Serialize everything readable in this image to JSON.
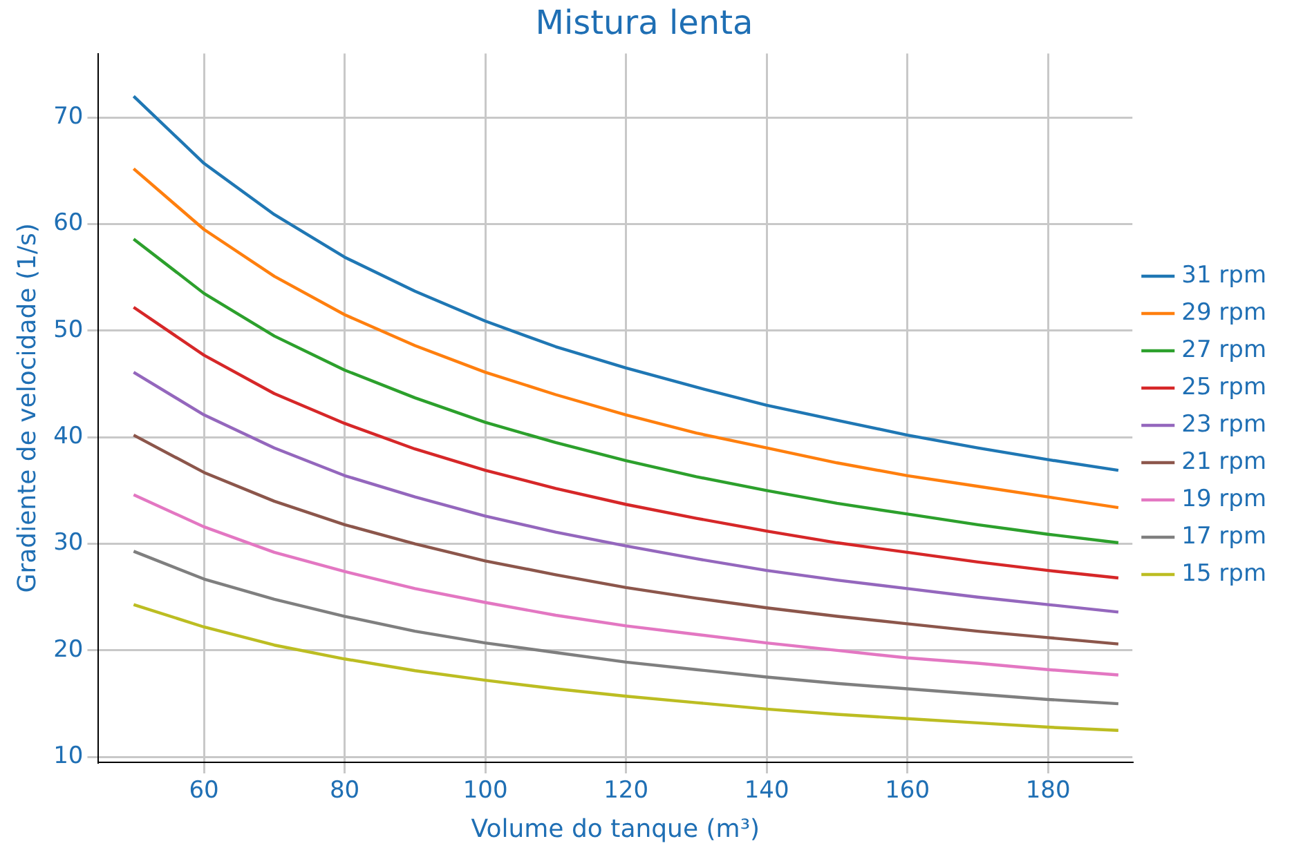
{
  "chart_data": {
    "type": "line",
    "title": "Mistura lenta",
    "xlabel": "Volume do tanque (m³)",
    "ylabel": "Gradiente de velocidade (1/s)",
    "x": [
      50,
      60,
      70,
      80,
      90,
      100,
      110,
      120,
      130,
      140,
      150,
      160,
      170,
      180,
      190
    ],
    "xlim": [
      45,
      192
    ],
    "xticks": [
      60,
      80,
      100,
      120,
      140,
      160,
      180
    ],
    "ylim": [
      9.5,
      76
    ],
    "yticks": [
      10,
      20,
      30,
      40,
      50,
      60,
      70
    ],
    "grid": true,
    "legend": "right",
    "marker": "none",
    "line_style": "solid",
    "series": [
      {
        "name": "31 rpm",
        "color": "#1f77b4",
        "values": [
          72,
          65.7,
          60.9,
          56.9,
          53.7,
          50.9,
          48.5,
          46.5,
          44.7,
          43.0,
          41.6,
          40.2,
          39.0,
          37.9,
          36.9
        ]
      },
      {
        "name": "29 rpm",
        "color": "#ff7f0e",
        "values": [
          65.2,
          59.5,
          55.1,
          51.5,
          48.6,
          46.1,
          44.0,
          42.1,
          40.4,
          39.0,
          37.6,
          36.4,
          35.4,
          34.4,
          33.4
        ]
      },
      {
        "name": "27 rpm",
        "color": "#2ca02c",
        "values": [
          58.6,
          53.5,
          49.5,
          46.3,
          43.7,
          41.4,
          39.5,
          37.8,
          36.3,
          35.0,
          33.8,
          32.8,
          31.8,
          30.9,
          30.1
        ]
      },
      {
        "name": "25 rpm",
        "color": "#d62728",
        "values": [
          52.2,
          47.7,
          44.1,
          41.3,
          38.9,
          36.9,
          35.2,
          33.7,
          32.4,
          31.2,
          30.1,
          29.2,
          28.3,
          27.5,
          26.8
        ]
      },
      {
        "name": "23 rpm",
        "color": "#9467bd",
        "values": [
          46.1,
          42.1,
          39.0,
          36.4,
          34.4,
          32.6,
          31.1,
          29.8,
          28.6,
          27.5,
          26.6,
          25.8,
          25.0,
          24.3,
          23.6
        ]
      },
      {
        "name": "21 rpm",
        "color": "#8c564b",
        "values": [
          40.2,
          36.7,
          34.0,
          31.8,
          30.0,
          28.4,
          27.1,
          25.9,
          24.9,
          24.0,
          23.2,
          22.5,
          21.8,
          21.2,
          20.6
        ]
      },
      {
        "name": "19 rpm",
        "color": "#e377c2",
        "values": [
          34.6,
          31.6,
          29.2,
          27.4,
          25.8,
          24.5,
          23.3,
          22.3,
          21.5,
          20.7,
          20.0,
          19.3,
          18.8,
          18.2,
          17.7
        ]
      },
      {
        "name": "17 rpm",
        "color": "#7f7f7f",
        "values": [
          29.3,
          26.7,
          24.8,
          23.2,
          21.8,
          20.7,
          19.8,
          18.9,
          18.2,
          17.5,
          16.9,
          16.4,
          15.9,
          15.4,
          15.0
        ]
      },
      {
        "name": "15 rpm",
        "color": "#bcbd22",
        "values": [
          24.3,
          22.2,
          20.5,
          19.2,
          18.1,
          17.2,
          16.4,
          15.7,
          15.1,
          14.5,
          14.0,
          13.6,
          13.2,
          12.8,
          12.5
        ]
      }
    ]
  }
}
